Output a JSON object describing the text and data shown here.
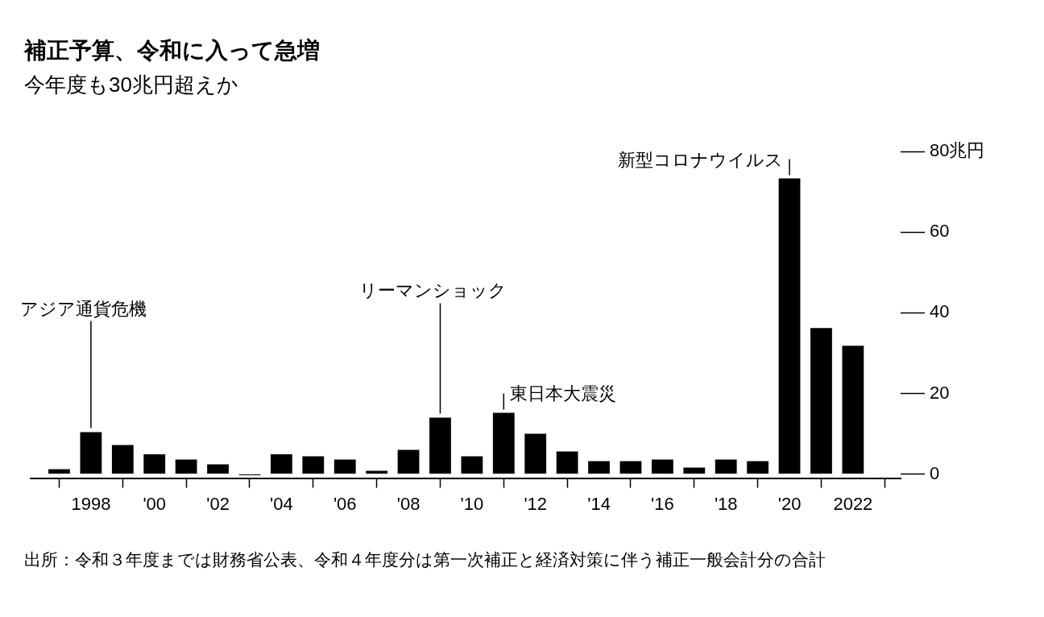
{
  "chart_data": {
    "type": "bar",
    "title": "補正予算、令和に入って急増",
    "subtitle": "今年度も30兆円超えか",
    "x": [
      1997,
      1998,
      1999,
      2000,
      2001,
      2002,
      2003,
      2004,
      2005,
      2006,
      2007,
      2008,
      2009,
      2010,
      2011,
      2012,
      2013,
      2014,
      2015,
      2016,
      2017,
      2018,
      2019,
      2020,
      2021,
      2022
    ],
    "values": [
      1.2,
      10.4,
      7.2,
      4.9,
      3.6,
      2.4,
      -0.3,
      4.9,
      4.4,
      3.6,
      0.8,
      6.0,
      14.0,
      4.4,
      15.2,
      10.0,
      5.6,
      3.2,
      3.2,
      3.6,
      1.6,
      3.6,
      3.2,
      73.3,
      36.2,
      31.8
    ],
    "color": "#000000",
    "xlim": [
      1996.1,
      2023.5
    ],
    "xticks": [
      {
        "value": 1998,
        "label": "1998"
      },
      {
        "value": 2000,
        "label": "'00"
      },
      {
        "value": 2002,
        "label": "'02"
      },
      {
        "value": 2004,
        "label": "'04"
      },
      {
        "value": 2006,
        "label": "'06"
      },
      {
        "value": 2008,
        "label": "'08"
      },
      {
        "value": 2010,
        "label": "'10"
      },
      {
        "value": 2012,
        "label": "'12"
      },
      {
        "value": 2014,
        "label": "'14"
      },
      {
        "value": 2016,
        "label": "'16"
      },
      {
        "value": 2018,
        "label": "'18"
      },
      {
        "value": 2020,
        "label": "'20"
      },
      {
        "value": 2022,
        "label": "2022"
      }
    ],
    "ylim": [
      -1,
      80
    ],
    "yticks": [
      0,
      20,
      40,
      60,
      {
        "value": 80,
        "label": "80兆円"
      }
    ],
    "grid": false,
    "legend": false,
    "annotations": [
      {
        "text": "アジア通貨危機",
        "x": 1998,
        "y": 10.4
      },
      {
        "text": "リーマンショック",
        "x": 2009,
        "y": 14.0
      },
      {
        "text": "東日本大震災",
        "x": 2011,
        "y": 15.2
      },
      {
        "text": "新型コロナウイルス",
        "x": 2020,
        "y": 73.3
      },
      "出所：令和３年度までは財務省公表、令和４年度分は第一次補正と経済対策に伴う補正一般会計分の合計"
    ]
  }
}
